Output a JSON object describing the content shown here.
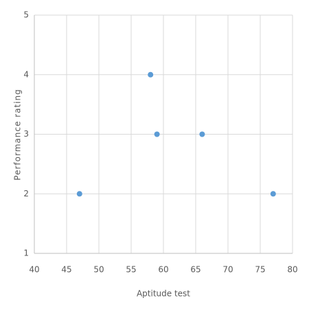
{
  "chart_data": {
    "type": "scatter",
    "x": [
      47,
      58,
      59,
      66,
      77
    ],
    "values": [
      2,
      4,
      3,
      3,
      2
    ],
    "color": "#5b9bd5",
    "xlabel": "Aptitude test",
    "ylabel": "Performance rating",
    "xlim": [
      40,
      80
    ],
    "xticks": [
      40,
      45,
      50,
      55,
      60,
      65,
      70,
      75,
      80
    ],
    "ylim": [
      1,
      5
    ],
    "yticks": [
      1,
      2,
      3,
      4,
      5
    ],
    "grid": true
  }
}
